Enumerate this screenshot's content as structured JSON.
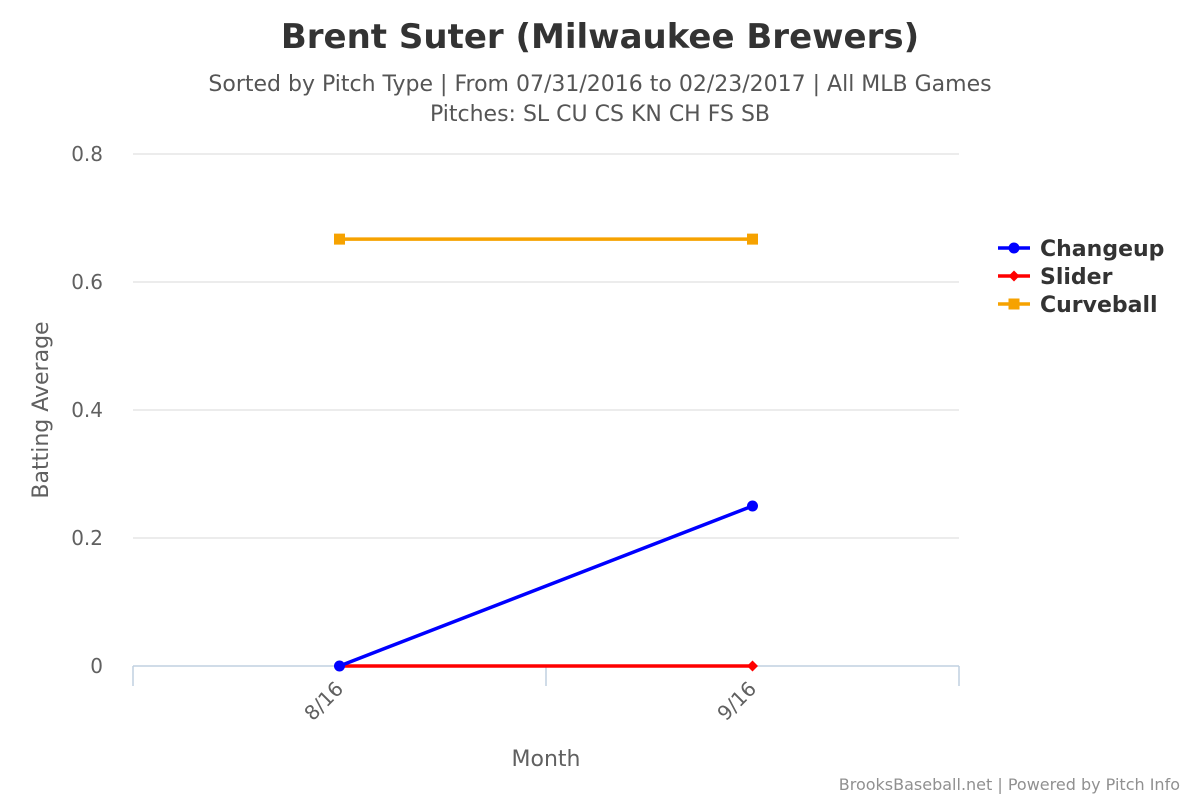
{
  "chart_data": {
    "type": "line",
    "title": "Brent Suter (Milwaukee Brewers)",
    "subtitle_lines": [
      "Sorted by Pitch Type | From 07/31/2016 to 02/23/2017 | All MLB Games",
      "Pitches: SL CU CS KN CH FS SB"
    ],
    "xlabel": "Month",
    "ylabel": "Batting Average",
    "categories": [
      "8/16",
      "9/16"
    ],
    "ylim": [
      0,
      0.8
    ],
    "yticks": [
      0,
      0.2,
      0.4,
      0.6,
      0.8
    ],
    "ytick_labels": [
      "0",
      "0.2",
      "0.4",
      "0.6",
      "0.8"
    ],
    "grid": true,
    "legend_position": "right",
    "series": [
      {
        "name": "Changeup",
        "values": [
          0,
          0.25
        ],
        "color": "#0000ff",
        "marker": "circle"
      },
      {
        "name": "Slider",
        "values": [
          0,
          0
        ],
        "color": "#ff0000",
        "marker": "diamond"
      },
      {
        "name": "Curveball",
        "values": [
          0.667,
          0.667
        ],
        "color": "#f6a200",
        "marker": "square"
      }
    ],
    "credits": "BrooksBaseball.net | Powered by Pitch Info"
  }
}
